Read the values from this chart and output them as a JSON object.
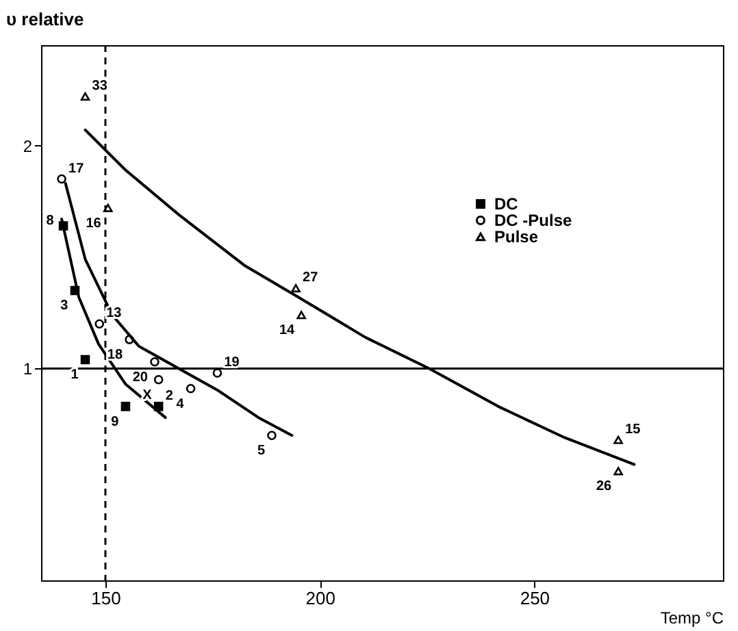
{
  "chart_data": {
    "type": "scatter",
    "xlabel": "Temp °C",
    "ylabel": "υ relative",
    "xlim": [
      135,
      294
    ],
    "ylim": [
      0.05,
      2.45
    ],
    "xticks": [
      150,
      200,
      250
    ],
    "yticks": [
      1,
      2
    ],
    "grid": false,
    "legend": "top right",
    "series": [
      {
        "name": "DC",
        "color": "#000000",
        "marker": "square",
        "x": [
          140.2,
          142.9,
          145.3,
          154.7,
          162.4
        ],
        "values": [
          1.64,
          1.35,
          1.04,
          0.83,
          0.83
        ]
      },
      {
        "name": "DC -Pulse",
        "color": "#000000",
        "marker": "circle",
        "x": [
          139.8,
          148.6,
          155.6,
          161.5,
          162.4,
          169.9,
          176.1,
          188.8
        ],
        "values": [
          1.85,
          1.2,
          1.13,
          1.03,
          0.95,
          0.91,
          0.98,
          0.7
        ]
      },
      {
        "name": "Pulse",
        "color": "#000000",
        "marker": "triangle",
        "x": [
          145.3,
          150.6,
          194.4,
          195.7,
          269.6,
          269.6
        ],
        "values": [
          2.22,
          1.72,
          1.36,
          1.24,
          0.68,
          0.54
        ]
      },
      {
        "type": "line",
        "color": "#000000",
        "x": [
          139.8,
          143.8,
          148.4,
          154.7,
          164
        ],
        "values": [
          1.67,
          1.32,
          1.11,
          0.93,
          0.78
        ]
      },
      {
        "type": "line",
        "color": "#000000",
        "x": [
          140.7,
          145.3,
          151.6,
          157.8,
          167.1,
          176.4,
          185.7,
          193.5
        ],
        "values": [
          1.83,
          1.49,
          1.24,
          1.1,
          1.0,
          0.9,
          0.78,
          0.7
        ]
      },
      {
        "type": "line",
        "color": "#000000",
        "x": [
          145.3,
          154.7,
          167.1,
          182.6,
          195,
          210.6,
          225.5,
          241.6,
          257.1,
          273.3
        ],
        "values": [
          2.07,
          1.89,
          1.69,
          1.46,
          1.32,
          1.14,
          1.0,
          0.83,
          0.69,
          0.57
        ]
      }
    ],
    "ref_lines": [
      {
        "axis": "y",
        "value": 1,
        "color": "#000000",
        "line_style": "solid"
      },
      {
        "axis": "x",
        "value": 150,
        "color": "#000000",
        "line_style": "dashed"
      }
    ],
    "annotations": [
      {
        "text": "33",
        "x": 145.3,
        "y": 2.22
      },
      {
        "text": "16",
        "x": 150.6,
        "y": 1.72
      },
      {
        "text": "27",
        "x": 194.4,
        "y": 1.36
      },
      {
        "text": "14",
        "x": 195.7,
        "y": 1.24
      },
      {
        "text": "15",
        "x": 269.6,
        "y": 0.68
      },
      {
        "text": "26",
        "x": 269.6,
        "y": 0.54
      },
      {
        "text": "17",
        "x": 139.8,
        "y": 1.85
      },
      {
        "text": "13",
        "x": 148.6,
        "y": 1.2
      },
      {
        "text": "18",
        "x": 155.6,
        "y": 1.13
      },
      {
        "text": "20",
        "x": 161.5,
        "y": 1.03
      },
      {
        "text": "X",
        "x": 162.4,
        "y": 0.95
      },
      {
        "text": "4",
        "x": 169.9,
        "y": 0.91
      },
      {
        "text": "19",
        "x": 176.1,
        "y": 0.98
      },
      {
        "text": "5",
        "x": 188.8,
        "y": 0.7
      },
      {
        "text": "8",
        "x": 140.2,
        "y": 1.64
      },
      {
        "text": "3",
        "x": 142.9,
        "y": 1.35
      },
      {
        "text": "1",
        "x": 145.3,
        "y": 1.04
      },
      {
        "text": "9",
        "x": 154.7,
        "y": 0.83
      },
      {
        "text": "2",
        "x": 162.4,
        "y": 0.83
      }
    ]
  }
}
